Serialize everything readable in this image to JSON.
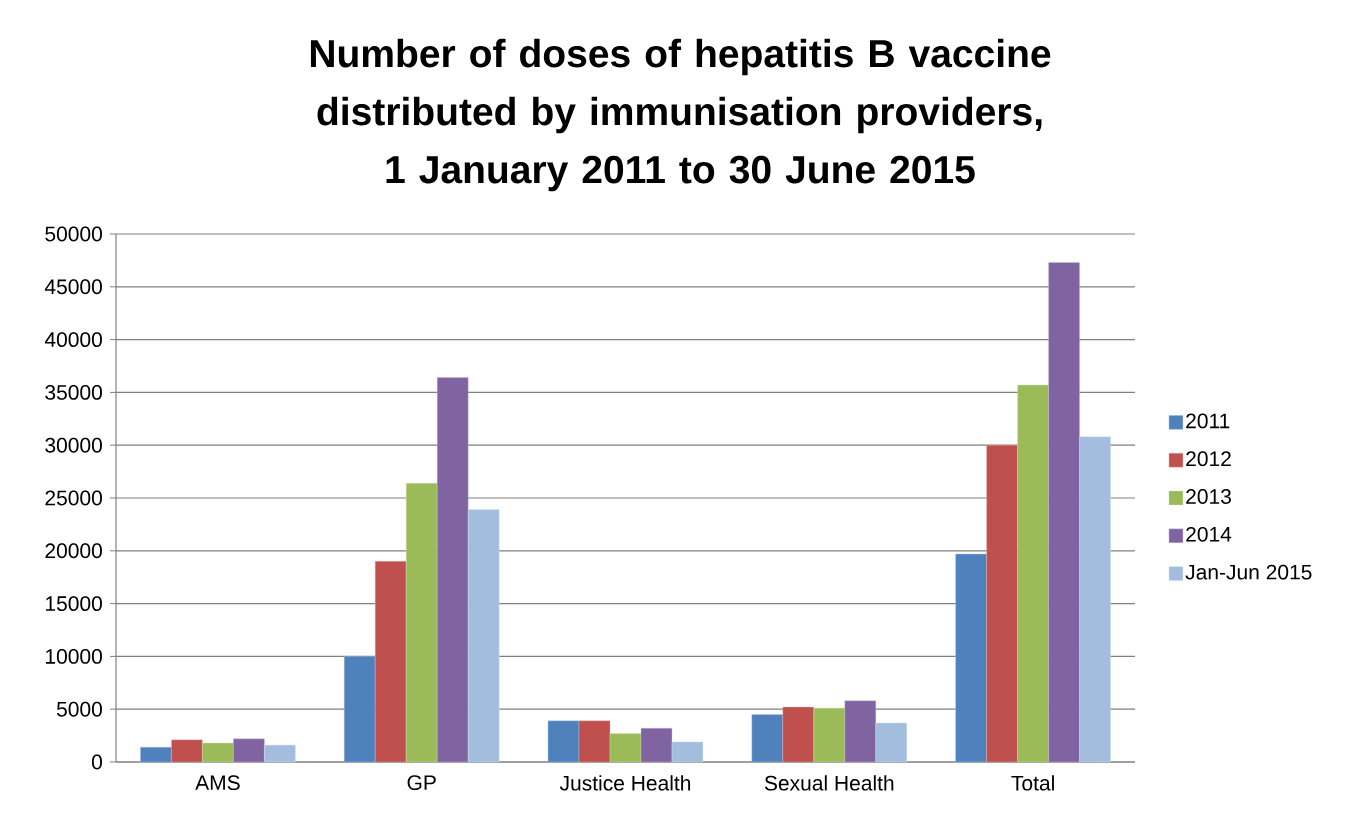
{
  "chart_data": {
    "type": "bar",
    "title": "Number of doses of hepatitis B vaccine distributed by immunisation providers, 1 January 2011 to 30 June 2015",
    "categories": [
      "AMS",
      "GP",
      "Justice Health",
      "Sexual Health",
      "Total"
    ],
    "series": [
      {
        "name": "2011",
        "color": "#4f81bd",
        "values": [
          1400,
          10000,
          3900,
          4500,
          19700
        ]
      },
      {
        "name": "2012",
        "color": "#c0504d",
        "values": [
          2100,
          19000,
          3900,
          5200,
          30000
        ]
      },
      {
        "name": "2013",
        "color": "#9bbb59",
        "values": [
          1800,
          26400,
          2700,
          5100,
          35700
        ]
      },
      {
        "name": "2014",
        "color": "#8064a2",
        "values": [
          2200,
          36400,
          3200,
          5800,
          47300
        ]
      },
      {
        "name": "Jan-Jun 2015",
        "color": "#a3bddf",
        "values": [
          1600,
          23900,
          1900,
          3700,
          30800
        ]
      }
    ],
    "ylim": [
      0,
      50000
    ],
    "yticks": [
      0,
      5000,
      10000,
      15000,
      20000,
      25000,
      30000,
      35000,
      40000,
      45000,
      50000
    ],
    "grid": "y",
    "legend": "right"
  }
}
